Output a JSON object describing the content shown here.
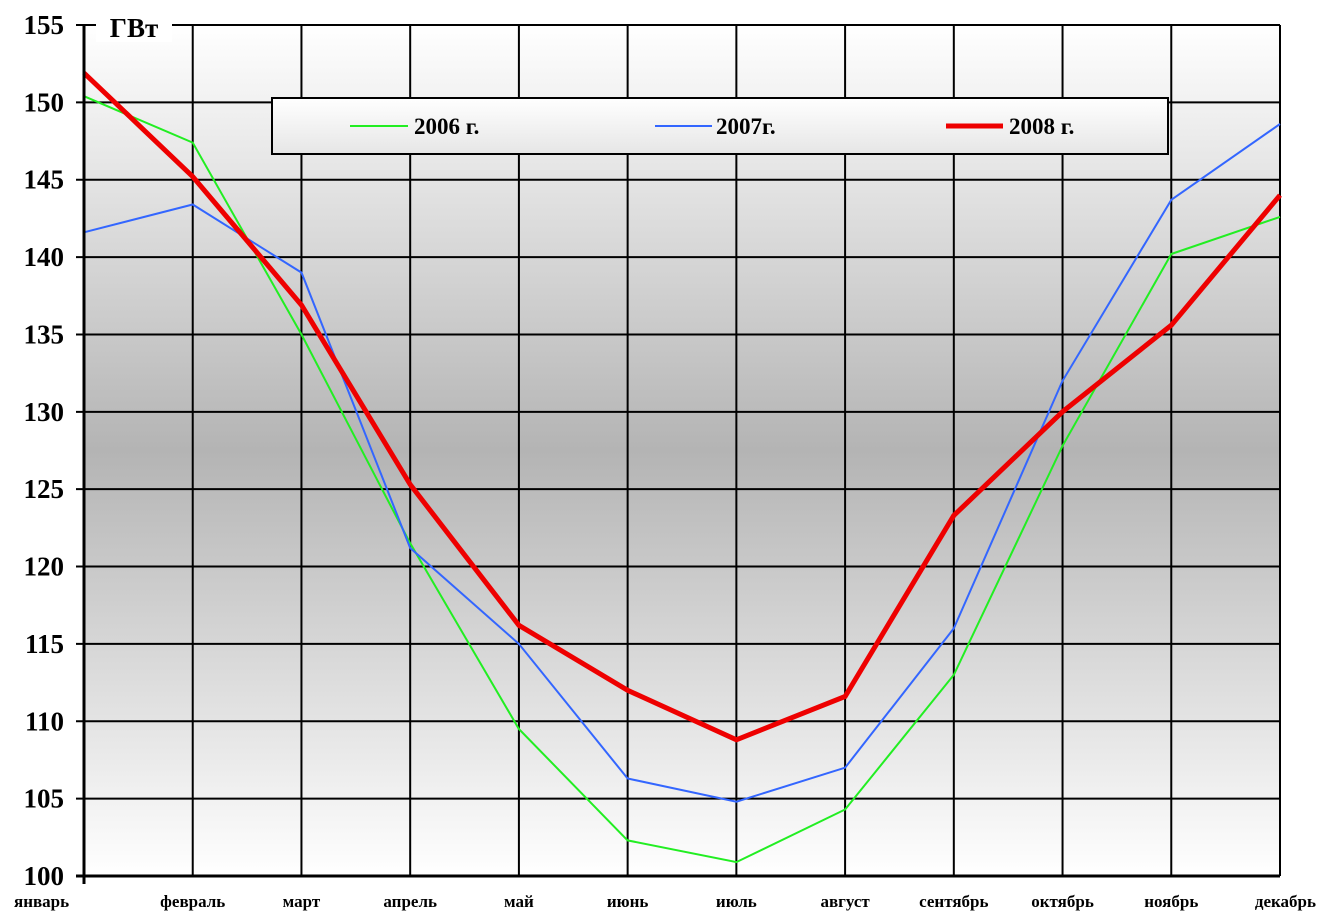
{
  "chart_data": {
    "type": "line",
    "unit_label": "ГВт",
    "categories": [
      "январь",
      "февраль",
      "март",
      "апрель",
      "май",
      "июнь",
      "июль",
      "август",
      "сентябрь",
      "октябрь",
      "ноябрь",
      "декабрь"
    ],
    "ylim": [
      100,
      155
    ],
    "yticks": [
      100,
      105,
      110,
      115,
      120,
      125,
      130,
      135,
      140,
      145,
      150,
      155
    ],
    "grid": true,
    "legend_position": "top",
    "series": [
      {
        "name": "2006 г.",
        "color": "#22ee22",
        "values": [
          150.4,
          147.4,
          135.0,
          121.5,
          109.5,
          102.3,
          100.9,
          104.3,
          113.0,
          127.8,
          140.2,
          142.6
        ]
      },
      {
        "name": "2007г.",
        "color": "#3366ff",
        "values": [
          141.6,
          143.4,
          139.0,
          121.2,
          115.0,
          106.3,
          104.8,
          107.0,
          116.0,
          132.0,
          143.7,
          148.6
        ]
      },
      {
        "name": "2008 г.",
        "color": "#ee0000",
        "values": [
          151.9,
          145.2,
          136.9,
          125.3,
          116.2,
          112.0,
          108.8,
          111.6,
          123.3,
          130.0,
          135.6,
          144.0
        ]
      }
    ]
  }
}
